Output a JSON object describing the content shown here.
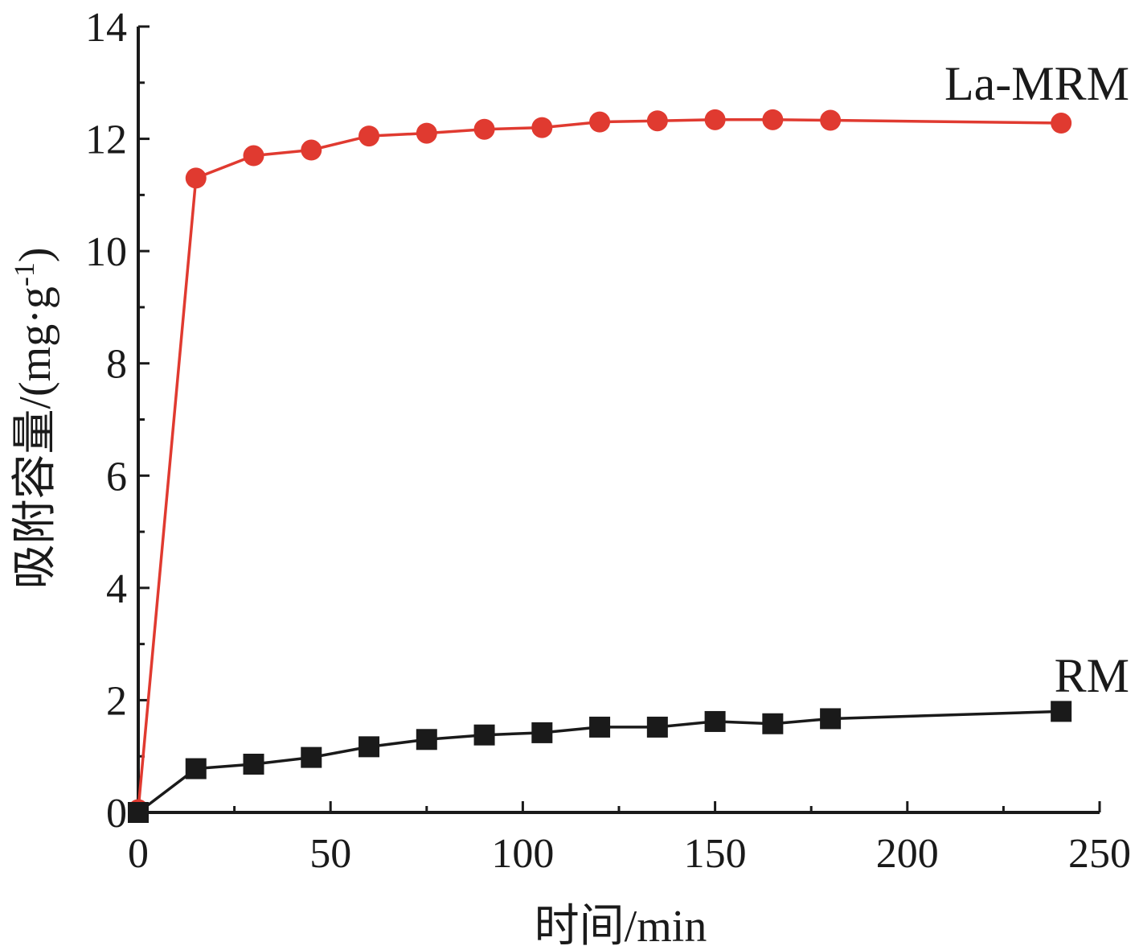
{
  "chart_data": {
    "type": "line",
    "xlabel": "时间/min",
    "ylabel": "吸附容量/(mg·g",
    "ylabel_sup": "-1",
    "ylabel_end": ")",
    "xlim": [
      0,
      250
    ],
    "ylim": [
      0,
      14
    ],
    "xticks": [
      0,
      50,
      100,
      150,
      200,
      250
    ],
    "yticks": [
      0,
      2,
      4,
      6,
      8,
      10,
      12,
      14
    ],
    "grid": false,
    "series": [
      {
        "name": "La-MRM",
        "color": "#e03a30",
        "marker": "circle",
        "x": [
          0,
          15,
          30,
          45,
          60,
          75,
          90,
          105,
          120,
          135,
          150,
          165,
          180,
          240
        ],
        "y": [
          0.05,
          11.3,
          11.7,
          11.8,
          12.05,
          12.1,
          12.17,
          12.2,
          12.3,
          12.32,
          12.34,
          12.34,
          12.33,
          12.28
        ]
      },
      {
        "name": "RM",
        "color": "#1a1a1a",
        "marker": "square",
        "x": [
          0,
          15,
          30,
          45,
          60,
          75,
          90,
          105,
          120,
          135,
          150,
          165,
          180,
          240
        ],
        "y": [
          0.0,
          0.78,
          0.86,
          0.98,
          1.17,
          1.3,
          1.38,
          1.42,
          1.52,
          1.52,
          1.62,
          1.58,
          1.67,
          1.8
        ]
      }
    ]
  }
}
